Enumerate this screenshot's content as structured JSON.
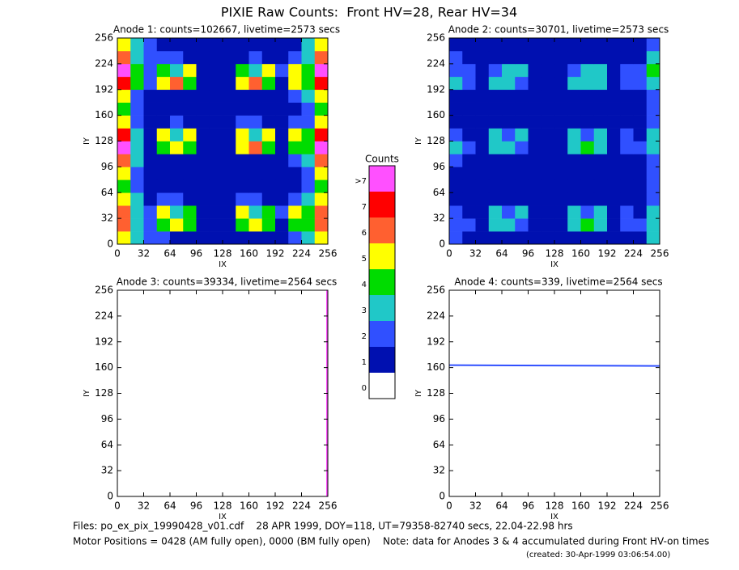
{
  "title": "PIXIE Raw Counts:  Front HV=28, Rear HV=34",
  "chart_data": [
    {
      "type": "heatmap",
      "title": "Anode 1: counts=102667, livetime=2573 secs",
      "xlabel": "IX",
      "ylabel": "IY",
      "xlim": [
        0,
        256
      ],
      "ylim": [
        0,
        256
      ],
      "xticks": [
        0,
        32,
        64,
        96,
        128,
        160,
        192,
        224,
        256
      ],
      "yticks": [
        0,
        32,
        64,
        96,
        128,
        160,
        192,
        224,
        256
      ],
      "z": [
        [
          5,
          3,
          2,
          2,
          1,
          1,
          1,
          1,
          1,
          1,
          1,
          1,
          1,
          2,
          3,
          5
        ],
        [
          6,
          3,
          2,
          4,
          5,
          4,
          1,
          1,
          1,
          4,
          5,
          4,
          1,
          4,
          4,
          6
        ],
        [
          6,
          3,
          2,
          5,
          3,
          4,
          1,
          1,
          1,
          5,
          3,
          4,
          2,
          5,
          4,
          6
        ],
        [
          5,
          3,
          1,
          2,
          2,
          1,
          1,
          1,
          1,
          2,
          2,
          1,
          1,
          2,
          3,
          5
        ],
        [
          4,
          2,
          1,
          1,
          1,
          1,
          1,
          1,
          1,
          1,
          1,
          1,
          1,
          1,
          2,
          4
        ],
        [
          5,
          2,
          1,
          1,
          1,
          1,
          1,
          1,
          1,
          1,
          1,
          1,
          1,
          1,
          2,
          5
        ],
        [
          6,
          3,
          1,
          1,
          1,
          1,
          1,
          1,
          1,
          1,
          1,
          1,
          1,
          2,
          3,
          6
        ],
        [
          8,
          3,
          1,
          4,
          5,
          4,
          1,
          1,
          1,
          5,
          6,
          4,
          1,
          4,
          4,
          8
        ],
        [
          7,
          3,
          1,
          5,
          3,
          5,
          1,
          1,
          1,
          5,
          3,
          5,
          1,
          5,
          4,
          7
        ],
        [
          5,
          2,
          1,
          1,
          2,
          1,
          1,
          1,
          1,
          2,
          2,
          1,
          1,
          2,
          2,
          5
        ],
        [
          4,
          2,
          1,
          1,
          1,
          1,
          1,
          1,
          1,
          1,
          1,
          1,
          1,
          1,
          2,
          4
        ],
        [
          5,
          2,
          1,
          1,
          1,
          1,
          1,
          1,
          1,
          1,
          1,
          1,
          1,
          2,
          3,
          5
        ],
        [
          7,
          4,
          2,
          5,
          6,
          4,
          1,
          1,
          1,
          5,
          6,
          4,
          1,
          5,
          4,
          7
        ],
        [
          8,
          4,
          2,
          4,
          3,
          5,
          1,
          1,
          1,
          4,
          3,
          5,
          2,
          5,
          4,
          8
        ],
        [
          6,
          3,
          2,
          2,
          2,
          1,
          1,
          1,
          1,
          1,
          2,
          1,
          1,
          2,
          3,
          6
        ],
        [
          5,
          3,
          2,
          1,
          1,
          1,
          1,
          1,
          1,
          1,
          1,
          1,
          1,
          1,
          3,
          5
        ]
      ]
    },
    {
      "type": "heatmap",
      "title": "Anode 2: counts=30701, livetime=2573 secs",
      "xlabel": "IX",
      "ylabel": "IY",
      "xlim": [
        0,
        256
      ],
      "ylim": [
        0,
        256
      ],
      "xticks": [
        0,
        32,
        64,
        96,
        128,
        160,
        192,
        224,
        256
      ],
      "yticks": [
        0,
        32,
        64,
        96,
        128,
        160,
        192,
        224,
        256
      ],
      "z": [
        [
          2,
          1,
          1,
          1,
          1,
          1,
          1,
          1,
          1,
          1,
          1,
          1,
          1,
          1,
          1,
          3
        ],
        [
          2,
          2,
          1,
          3,
          3,
          2,
          1,
          1,
          1,
          3,
          4,
          3,
          1,
          2,
          2,
          3
        ],
        [
          2,
          1,
          1,
          3,
          2,
          3,
          1,
          1,
          1,
          3,
          2,
          3,
          1,
          2,
          1,
          3
        ],
        [
          1,
          1,
          1,
          1,
          1,
          1,
          1,
          1,
          1,
          1,
          1,
          1,
          1,
          1,
          1,
          2
        ],
        [
          1,
          1,
          1,
          1,
          1,
          1,
          1,
          1,
          1,
          1,
          1,
          1,
          1,
          1,
          1,
          2
        ],
        [
          1,
          1,
          1,
          1,
          1,
          1,
          1,
          1,
          1,
          1,
          1,
          1,
          1,
          1,
          1,
          2
        ],
        [
          2,
          1,
          1,
          1,
          1,
          1,
          1,
          1,
          1,
          1,
          1,
          1,
          1,
          1,
          1,
          2
        ],
        [
          3,
          2,
          1,
          3,
          3,
          2,
          1,
          1,
          1,
          3,
          4,
          3,
          1,
          2,
          2,
          3
        ],
        [
          2,
          1,
          1,
          3,
          2,
          3,
          1,
          1,
          1,
          3,
          2,
          3,
          1,
          2,
          1,
          3
        ],
        [
          1,
          1,
          1,
          1,
          1,
          1,
          1,
          1,
          1,
          1,
          1,
          1,
          1,
          1,
          1,
          2
        ],
        [
          1,
          1,
          1,
          1,
          1,
          1,
          1,
          1,
          1,
          1,
          1,
          1,
          1,
          1,
          1,
          2
        ],
        [
          1,
          1,
          1,
          1,
          1,
          1,
          1,
          1,
          1,
          1,
          1,
          1,
          1,
          1,
          1,
          2
        ],
        [
          3,
          2,
          1,
          3,
          3,
          2,
          1,
          1,
          1,
          3,
          3,
          3,
          1,
          2,
          2,
          3
        ],
        [
          2,
          2,
          1,
          2,
          3,
          3,
          1,
          1,
          1,
          2,
          3,
          3,
          1,
          2,
          2,
          4
        ],
        [
          2,
          1,
          1,
          1,
          1,
          1,
          1,
          1,
          1,
          1,
          1,
          1,
          1,
          1,
          1,
          3
        ],
        [
          1,
          1,
          1,
          1,
          1,
          1,
          1,
          1,
          1,
          1,
          1,
          1,
          1,
          1,
          1,
          2
        ]
      ]
    },
    {
      "type": "lines",
      "title": "Anode 3: counts=39334, livetime=2564 secs",
      "xlabel": "IX",
      "ylabel": "IY",
      "xlim": [
        0,
        256
      ],
      "ylim": [
        0,
        256
      ],
      "xticks": [
        0,
        32,
        64,
        96,
        128,
        160,
        192,
        224,
        256
      ],
      "yticks": [
        0,
        32,
        64,
        96,
        128,
        160,
        192,
        224,
        256
      ],
      "lines": [
        {
          "x": [
            255,
            255
          ],
          "y": [
            0,
            256
          ],
          "level": 8
        }
      ]
    },
    {
      "type": "lines",
      "title": "Anode 4: counts=339, livetime=2564 secs",
      "xlabel": "IX",
      "ylabel": "IY",
      "xlim": [
        0,
        256
      ],
      "ylim": [
        0,
        256
      ],
      "xticks": [
        0,
        32,
        64,
        96,
        128,
        160,
        192,
        224,
        256
      ],
      "yticks": [
        0,
        32,
        64,
        96,
        128,
        160,
        192,
        224,
        256
      ],
      "lines": [
        {
          "x": [
            0,
            256
          ],
          "y": [
            163,
            162
          ],
          "level": 2
        }
      ]
    }
  ],
  "colorbar": {
    "title": "Counts",
    "levels": [
      0,
      1,
      2,
      3,
      4,
      5,
      6,
      7,
      {
        "value": 8,
        "label": ">7"
      }
    ],
    "colors": [
      "#ffffff",
      "#0010b0",
      "#3050ff",
      "#20c8c8",
      "#00dc00",
      "#ffff00",
      "#ff6030",
      "#ff0000",
      "#ff50ff"
    ]
  },
  "footer": [
    "Files: po_ex_pix_19990428_v01.cdf    28 APR 1999, DOY=118, UT=79358-82740 secs, 22.04-22.98 hrs",
    "Motor Positions = 0428 (AM fully open), 0000 (BM fully open)    Note: data for Anodes 3 & 4 accumulated during Front HV-on times",
    "(created: 30-Apr-1999 03:06:54.00)"
  ]
}
